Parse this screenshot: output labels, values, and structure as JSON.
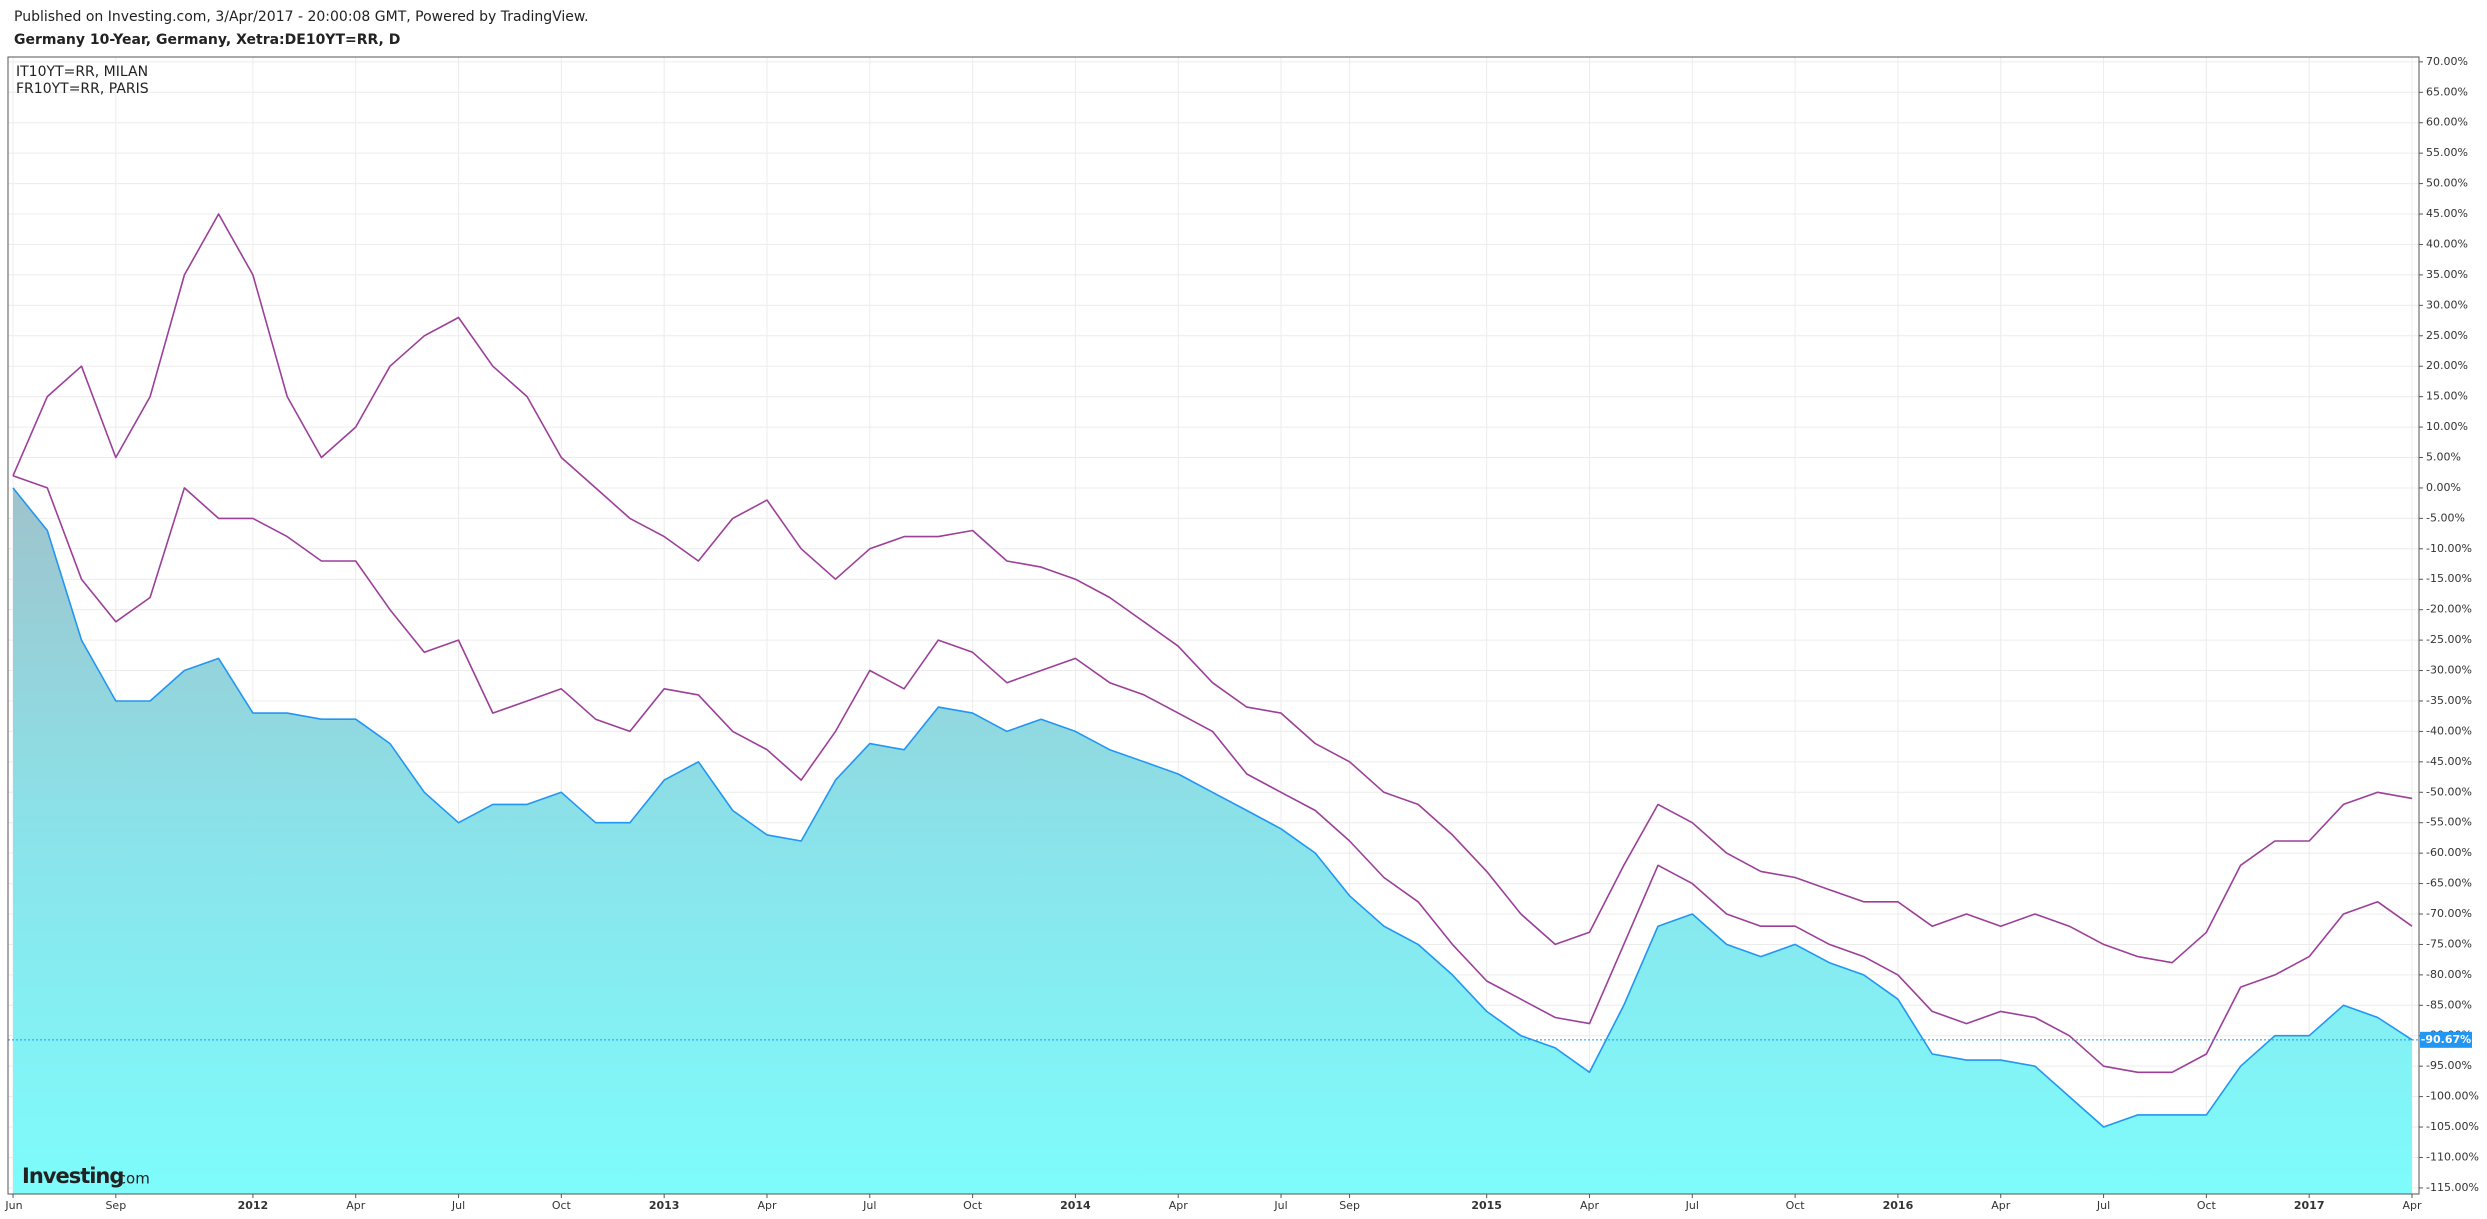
{
  "chart_data": {
    "type": "line",
    "caption": "Published on Investing.com, 3/Apr/2017 - 20:00:08 GMT, Powered by TradingView.",
    "title": "Germany 10-Year, Germany, Xetra:DE10YT=RR, D",
    "watermark": "Investing",
    "watermark_suffix": ".com",
    "x": [
      "2011-06",
      "2011-07",
      "2011-08",
      "2011-09",
      "2011-10",
      "2011-11",
      "2011-12",
      "2012-01",
      "2012-02",
      "2012-03",
      "2012-04",
      "2012-05",
      "2012-06",
      "2012-07",
      "2012-08",
      "2012-09",
      "2012-10",
      "2012-11",
      "2012-12",
      "2013-01",
      "2013-02",
      "2013-03",
      "2013-04",
      "2013-05",
      "2013-06",
      "2013-07",
      "2013-08",
      "2013-09",
      "2013-10",
      "2013-11",
      "2013-12",
      "2014-01",
      "2014-02",
      "2014-03",
      "2014-04",
      "2014-05",
      "2014-06",
      "2014-07",
      "2014-08",
      "2014-09",
      "2014-10",
      "2014-11",
      "2014-12",
      "2015-01",
      "2015-02",
      "2015-03",
      "2015-04",
      "2015-05",
      "2015-06",
      "2015-07",
      "2015-08",
      "2015-09",
      "2015-10",
      "2015-11",
      "2015-12",
      "2016-01",
      "2016-02",
      "2016-03",
      "2016-04",
      "2016-05",
      "2016-06",
      "2016-07",
      "2016-08",
      "2016-09",
      "2016-10",
      "2016-11",
      "2016-12",
      "2017-01",
      "2017-02",
      "2017-03",
      "2017-04"
    ],
    "series": [
      {
        "color": "#2196f3",
        "area": true,
        "values": [
          0,
          -7,
          -25,
          -35,
          -35,
          -30,
          -28,
          -37,
          -37,
          -38,
          -38,
          -42,
          -50,
          -55,
          -52,
          -52,
          -50,
          -55,
          -55,
          -48,
          -45,
          -53,
          -57,
          -58,
          -48,
          -42,
          -43,
          -36,
          -37,
          -40,
          -38,
          -40,
          -43,
          -45,
          -47,
          -50,
          -53,
          -56,
          -60,
          -67,
          -72,
          -75,
          -80,
          -86,
          -90,
          -92,
          -96,
          -85,
          -72,
          -70,
          -75,
          -77,
          -75,
          -78,
          -80,
          -84,
          -93,
          -94,
          -94,
          -95,
          -100,
          -105,
          -103,
          -103,
          -103,
          -95,
          -90,
          -90,
          -85,
          -87,
          -90.67
        ]
      },
      {
        "name": "IT10YT=RR, MILAN",
        "color": "#9c3f99",
        "values": [
          2,
          15,
          20,
          5,
          15,
          35,
          45,
          35,
          15,
          5,
          10,
          20,
          25,
          28,
          20,
          15,
          5,
          0,
          -5,
          -8,
          -12,
          -5,
          -2,
          -10,
          -15,
          -10,
          -8,
          -8,
          -7,
          -12,
          -13,
          -15,
          -18,
          -22,
          -26,
          -32,
          -36,
          -37,
          -42,
          -45,
          -50,
          -52,
          -57,
          -63,
          -70,
          -75,
          -73,
          -62,
          -52,
          -55,
          -60,
          -63,
          -64,
          -66,
          -68,
          -68,
          -72,
          -70,
          -72,
          -70,
          -72,
          -75,
          -77,
          -78,
          -73,
          -62,
          -58,
          -58,
          -52,
          -50,
          -51
        ]
      },
      {
        "name": "FR10YT=RR, PARIS",
        "color": "#9c3f99",
        "values": [
          2,
          0,
          -15,
          -22,
          -18,
          0,
          -5,
          -5,
          -8,
          -12,
          -12,
          -20,
          -27,
          -25,
          -37,
          -35,
          -33,
          -38,
          -40,
          -33,
          -34,
          -40,
          -43,
          -48,
          -40,
          -30,
          -33,
          -25,
          -27,
          -32,
          -30,
          -28,
          -32,
          -34,
          -37,
          -40,
          -47,
          -50,
          -53,
          -58,
          -64,
          -68,
          -75,
          -81,
          -84,
          -87,
          -88,
          -75,
          -62,
          -65,
          -70,
          -72,
          -72,
          -75,
          -77,
          -80,
          -86,
          -88,
          -86,
          -87,
          -90,
          -95,
          -96,
          -96,
          -93,
          -82,
          -80,
          -77,
          -70,
          -68,
          -72
        ]
      }
    ],
    "price_line": {
      "value": -90.67,
      "label": "-90.67%"
    },
    "xlim": [
      "2011-06",
      "2017-04"
    ],
    "xticks": [
      {
        "value": "2011-06",
        "label": "Jun"
      },
      {
        "value": "2011-09",
        "label": "Sep"
      },
      {
        "value": "2012-01",
        "label": "2012"
      },
      {
        "value": "2012-04",
        "label": "Apr"
      },
      {
        "value": "2012-07",
        "label": "Jul"
      },
      {
        "value": "2012-10",
        "label": "Oct"
      },
      {
        "value": "2013-01",
        "label": "2013"
      },
      {
        "value": "2013-04",
        "label": "Apr"
      },
      {
        "value": "2013-07",
        "label": "Jul"
      },
      {
        "value": "2013-10",
        "label": "Oct"
      },
      {
        "value": "2014-01",
        "label": "2014"
      },
      {
        "value": "2014-04",
        "label": "Apr"
      },
      {
        "value": "2014-07",
        "label": "Jul"
      },
      {
        "value": "2014-09",
        "label": "Sep"
      },
      {
        "value": "2015-01",
        "label": "2015"
      },
      {
        "value": "2015-04",
        "label": "Apr"
      },
      {
        "value": "2015-07",
        "label": "Jul"
      },
      {
        "value": "2015-10",
        "label": "Oct"
      },
      {
        "value": "2016-01",
        "label": "2016"
      },
      {
        "value": "2016-04",
        "label": "Apr"
      },
      {
        "value": "2016-07",
        "label": "Jul"
      },
      {
        "value": "2016-10",
        "label": "Oct"
      },
      {
        "value": "2017-01",
        "label": "2017"
      },
      {
        "value": "2017-04",
        "label": "Apr"
      }
    ],
    "ylim": [
      -116,
      70.8
    ],
    "yticks": [
      {
        "value": 70,
        "label": "70.00%"
      },
      {
        "value": 65,
        "label": "65.00%"
      },
      {
        "value": 60,
        "label": "60.00%"
      },
      {
        "value": 55,
        "label": "55.00%"
      },
      {
        "value": 50,
        "label": "50.00%"
      },
      {
        "value": 45,
        "label": "45.00%"
      },
      {
        "value": 40,
        "label": "40.00%"
      },
      {
        "value": 35,
        "label": "35.00%"
      },
      {
        "value": 30,
        "label": "30.00%"
      },
      {
        "value": 25,
        "label": "25.00%"
      },
      {
        "value": 20,
        "label": "20.00%"
      },
      {
        "value": 15,
        "label": "15.00%"
      },
      {
        "value": 10,
        "label": "10.00%"
      },
      {
        "value": 5,
        "label": "5.00%"
      },
      {
        "value": 0,
        "label": "0.00%"
      },
      {
        "value": -5,
        "label": "-5.00%"
      },
      {
        "value": -10,
        "label": "-10.00%"
      },
      {
        "value": -15,
        "label": "-15.00%"
      },
      {
        "value": -20,
        "label": "-20.00%"
      },
      {
        "value": -25,
        "label": "-25.00%"
      },
      {
        "value": -30,
        "label": "-30.00%"
      },
      {
        "value": -35,
        "label": "-35.00%"
      },
      {
        "value": -40,
        "label": "-40.00%"
      },
      {
        "value": -45,
        "label": "-45.00%"
      },
      {
        "value": -50,
        "label": "-50.00%"
      },
      {
        "value": -55,
        "label": "-55.00%"
      },
      {
        "value": -60,
        "label": "-60.00%"
      },
      {
        "value": -65,
        "label": "-65.00%"
      },
      {
        "value": -70,
        "label": "-70.00%"
      },
      {
        "value": -75,
        "label": "-75.00%"
      },
      {
        "value": -80,
        "label": "-80.00%"
      },
      {
        "value": -85,
        "label": "-85.00%"
      },
      {
        "value": -90,
        "label": "-90.00%"
      },
      {
        "value": -95,
        "label": "-95.00%"
      },
      {
        "value": -100,
        "label": "-100.00%"
      },
      {
        "value": -105,
        "label": "-105.00%"
      },
      {
        "value": -110,
        "label": "-110.00%"
      },
      {
        "value": -115,
        "label": "-115.00%"
      }
    ],
    "grid": true
  }
}
